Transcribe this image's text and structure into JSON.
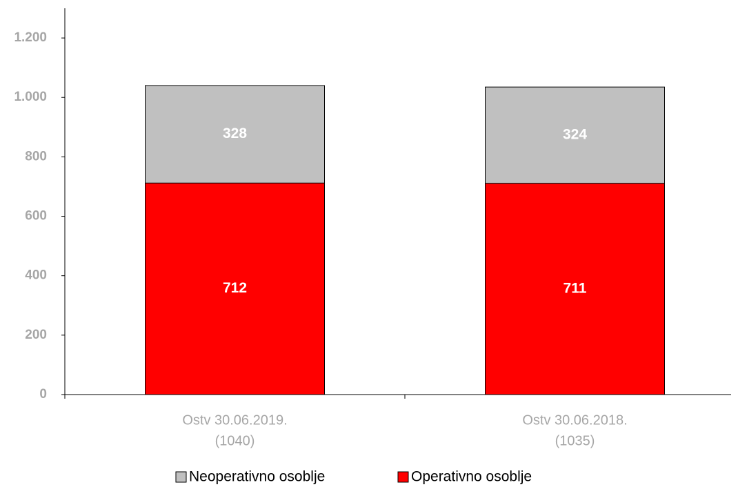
{
  "chart_data": {
    "type": "stacked_bar",
    "categories": [
      [
        "Ostv 30.06.2019.",
        "(1040)"
      ],
      [
        "Ostv 30.06.2018.",
        "(1035)"
      ]
    ],
    "series": [
      {
        "name": "Operativno osoblje",
        "color": "#ff0000",
        "values": [
          712,
          711
        ]
      },
      {
        "name": "Neoperativno osoblje",
        "color": "#c0c0c0",
        "values": [
          328,
          324
        ]
      }
    ],
    "ylim": [
      0,
      1300
    ],
    "yticks": [
      0,
      200,
      400,
      600,
      800,
      {
        "value": 1000,
        "label": "1.000"
      },
      {
        "value": 1200,
        "label": "1.200"
      }
    ],
    "legend": "bottom"
  }
}
